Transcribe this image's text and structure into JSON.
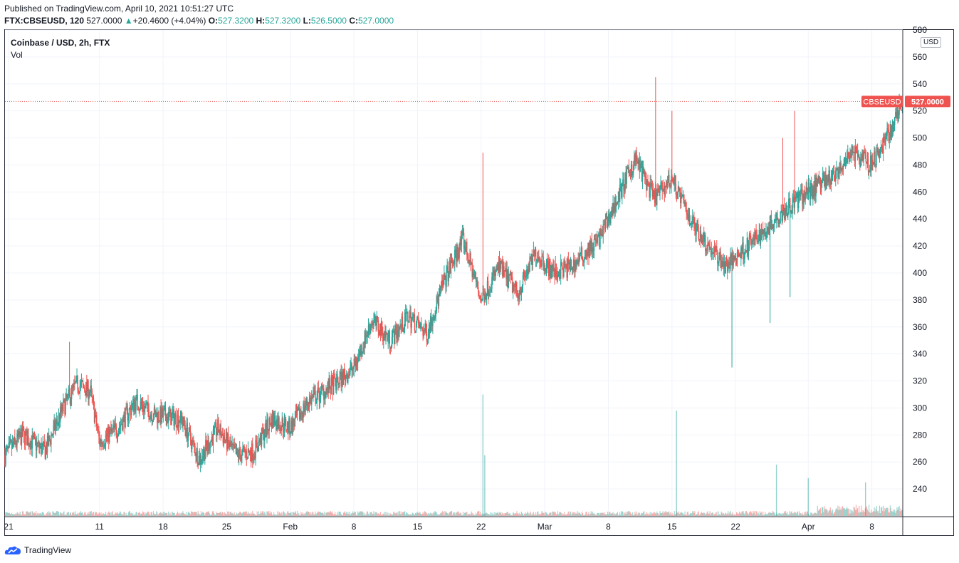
{
  "header": {
    "published": "Published on TradingView.com, April 10, 2021 10:51:27 UTC",
    "symbol_line": "FTX:CBSEUSD, 120",
    "last": "527.0000",
    "change_arrow": "▲",
    "change": "+20.4600 (+4.04%)",
    "o_label": "O:",
    "o": "527.3200",
    "h_label": "H:",
    "h": "527.3200",
    "l_label": "L:",
    "l": "526.5000",
    "c_label": "C:",
    "c": "527.0000"
  },
  "chart_title": "Coinbase / USD, 2h, FTX",
  "volume_label": "Vol",
  "currency_badge": "USD",
  "price_tag": {
    "symbol": "CBSEUSD",
    "value": "527.0000"
  },
  "footer": {
    "brand": "TradingView",
    "icon": "tradingview-cloud-icon"
  },
  "colors": {
    "up": "#26a69a",
    "down": "#ef5350",
    "grid": "#f0f3fa",
    "axis_text": "#131722",
    "price_tag": "#ef5350"
  },
  "chart_data": {
    "type": "candlestick",
    "title": "Coinbase / USD, 2h, FTX",
    "ylim": [
      220,
      580
    ],
    "y_ticks": [
      240,
      260,
      280,
      300,
      320,
      340,
      360,
      380,
      400,
      420,
      440,
      460,
      480,
      500,
      520,
      540,
      560,
      580
    ],
    "y_tick_labels": [
      "240",
      "260",
      "280",
      "300",
      "320",
      "340",
      "360",
      "380",
      "400",
      "420",
      "440",
      "460",
      "480",
      "500",
      "520",
      "540",
      "560",
      "580"
    ],
    "x_tick_labels": [
      "21",
      "11",
      "18",
      "25",
      "Feb",
      "8",
      "15",
      "22",
      "Mar",
      "8",
      "15",
      "22",
      "Apr",
      "8"
    ],
    "x_tick_days": [
      -44,
      -34,
      -27,
      -20,
      -13,
      -6,
      1,
      8,
      15,
      22,
      29,
      36,
      44,
      51
    ],
    "x_range_days": [
      -44.4,
      54.4
    ],
    "last_price": 527.0,
    "price_path": [
      {
        "day": -44.4,
        "price": 265
      },
      {
        "day": -42.5,
        "price": 280
      },
      {
        "day": -40,
        "price": 268
      },
      {
        "day": -38,
        "price": 300
      },
      {
        "day": -36.5,
        "price": 318
      },
      {
        "day": -35,
        "price": 312
      },
      {
        "day": -34,
        "price": 275
      },
      {
        "day": -32,
        "price": 285
      },
      {
        "day": -30,
        "price": 305
      },
      {
        "day": -28,
        "price": 295
      },
      {
        "day": -25,
        "price": 292
      },
      {
        "day": -23,
        "price": 262
      },
      {
        "day": -21,
        "price": 285
      },
      {
        "day": -19,
        "price": 265
      },
      {
        "day": -17,
        "price": 268
      },
      {
        "day": -15,
        "price": 292
      },
      {
        "day": -13,
        "price": 285
      },
      {
        "day": -11,
        "price": 305
      },
      {
        "day": -8,
        "price": 318
      },
      {
        "day": -6,
        "price": 330
      },
      {
        "day": -4,
        "price": 365
      },
      {
        "day": -2,
        "price": 350
      },
      {
        "day": 0,
        "price": 368
      },
      {
        "day": 2,
        "price": 355
      },
      {
        "day": 4,
        "price": 395
      },
      {
        "day": 6,
        "price": 425
      },
      {
        "day": 8,
        "price": 380
      },
      {
        "day": 10,
        "price": 405
      },
      {
        "day": 12,
        "price": 385
      },
      {
        "day": 14,
        "price": 415
      },
      {
        "day": 16,
        "price": 400
      },
      {
        "day": 18,
        "price": 405
      },
      {
        "day": 21,
        "price": 425
      },
      {
        "day": 23,
        "price": 455
      },
      {
        "day": 25,
        "price": 485
      },
      {
        "day": 27,
        "price": 455
      },
      {
        "day": 29,
        "price": 470
      },
      {
        "day": 31,
        "price": 440
      },
      {
        "day": 33,
        "price": 420
      },
      {
        "day": 35,
        "price": 405
      },
      {
        "day": 37,
        "price": 418
      },
      {
        "day": 39,
        "price": 430
      },
      {
        "day": 41,
        "price": 445
      },
      {
        "day": 43,
        "price": 455
      },
      {
        "day": 45,
        "price": 465
      },
      {
        "day": 47,
        "price": 473
      },
      {
        "day": 49,
        "price": 488
      },
      {
        "day": 51,
        "price": 480
      },
      {
        "day": 53,
        "price": 505
      },
      {
        "day": 54.4,
        "price": 527
      }
    ],
    "notable_wicks": [
      {
        "day": -37.3,
        "high": 349
      },
      {
        "day": 8.2,
        "high": 489
      },
      {
        "day": 27.2,
        "high": 545
      },
      {
        "day": 29.0,
        "high": 520
      },
      {
        "day": 35.6,
        "low": 330
      },
      {
        "day": 39.8,
        "low": 363
      },
      {
        "day": 41.2,
        "high": 500
      },
      {
        "day": 42.5,
        "high": 520
      },
      {
        "day": 42.0,
        "low": 382
      }
    ],
    "volume_spikes": [
      {
        "day": 8.2,
        "value": 310
      },
      {
        "day": 8.4,
        "value": 265
      },
      {
        "day": 29.5,
        "value": 298
      },
      {
        "day": 40.5,
        "value": 258
      },
      {
        "day": 44.0,
        "value": 248
      },
      {
        "day": 50.3,
        "value": 245
      }
    ],
    "volume_scale_note": "Volume shown on the same price-scale overlay as in source"
  }
}
